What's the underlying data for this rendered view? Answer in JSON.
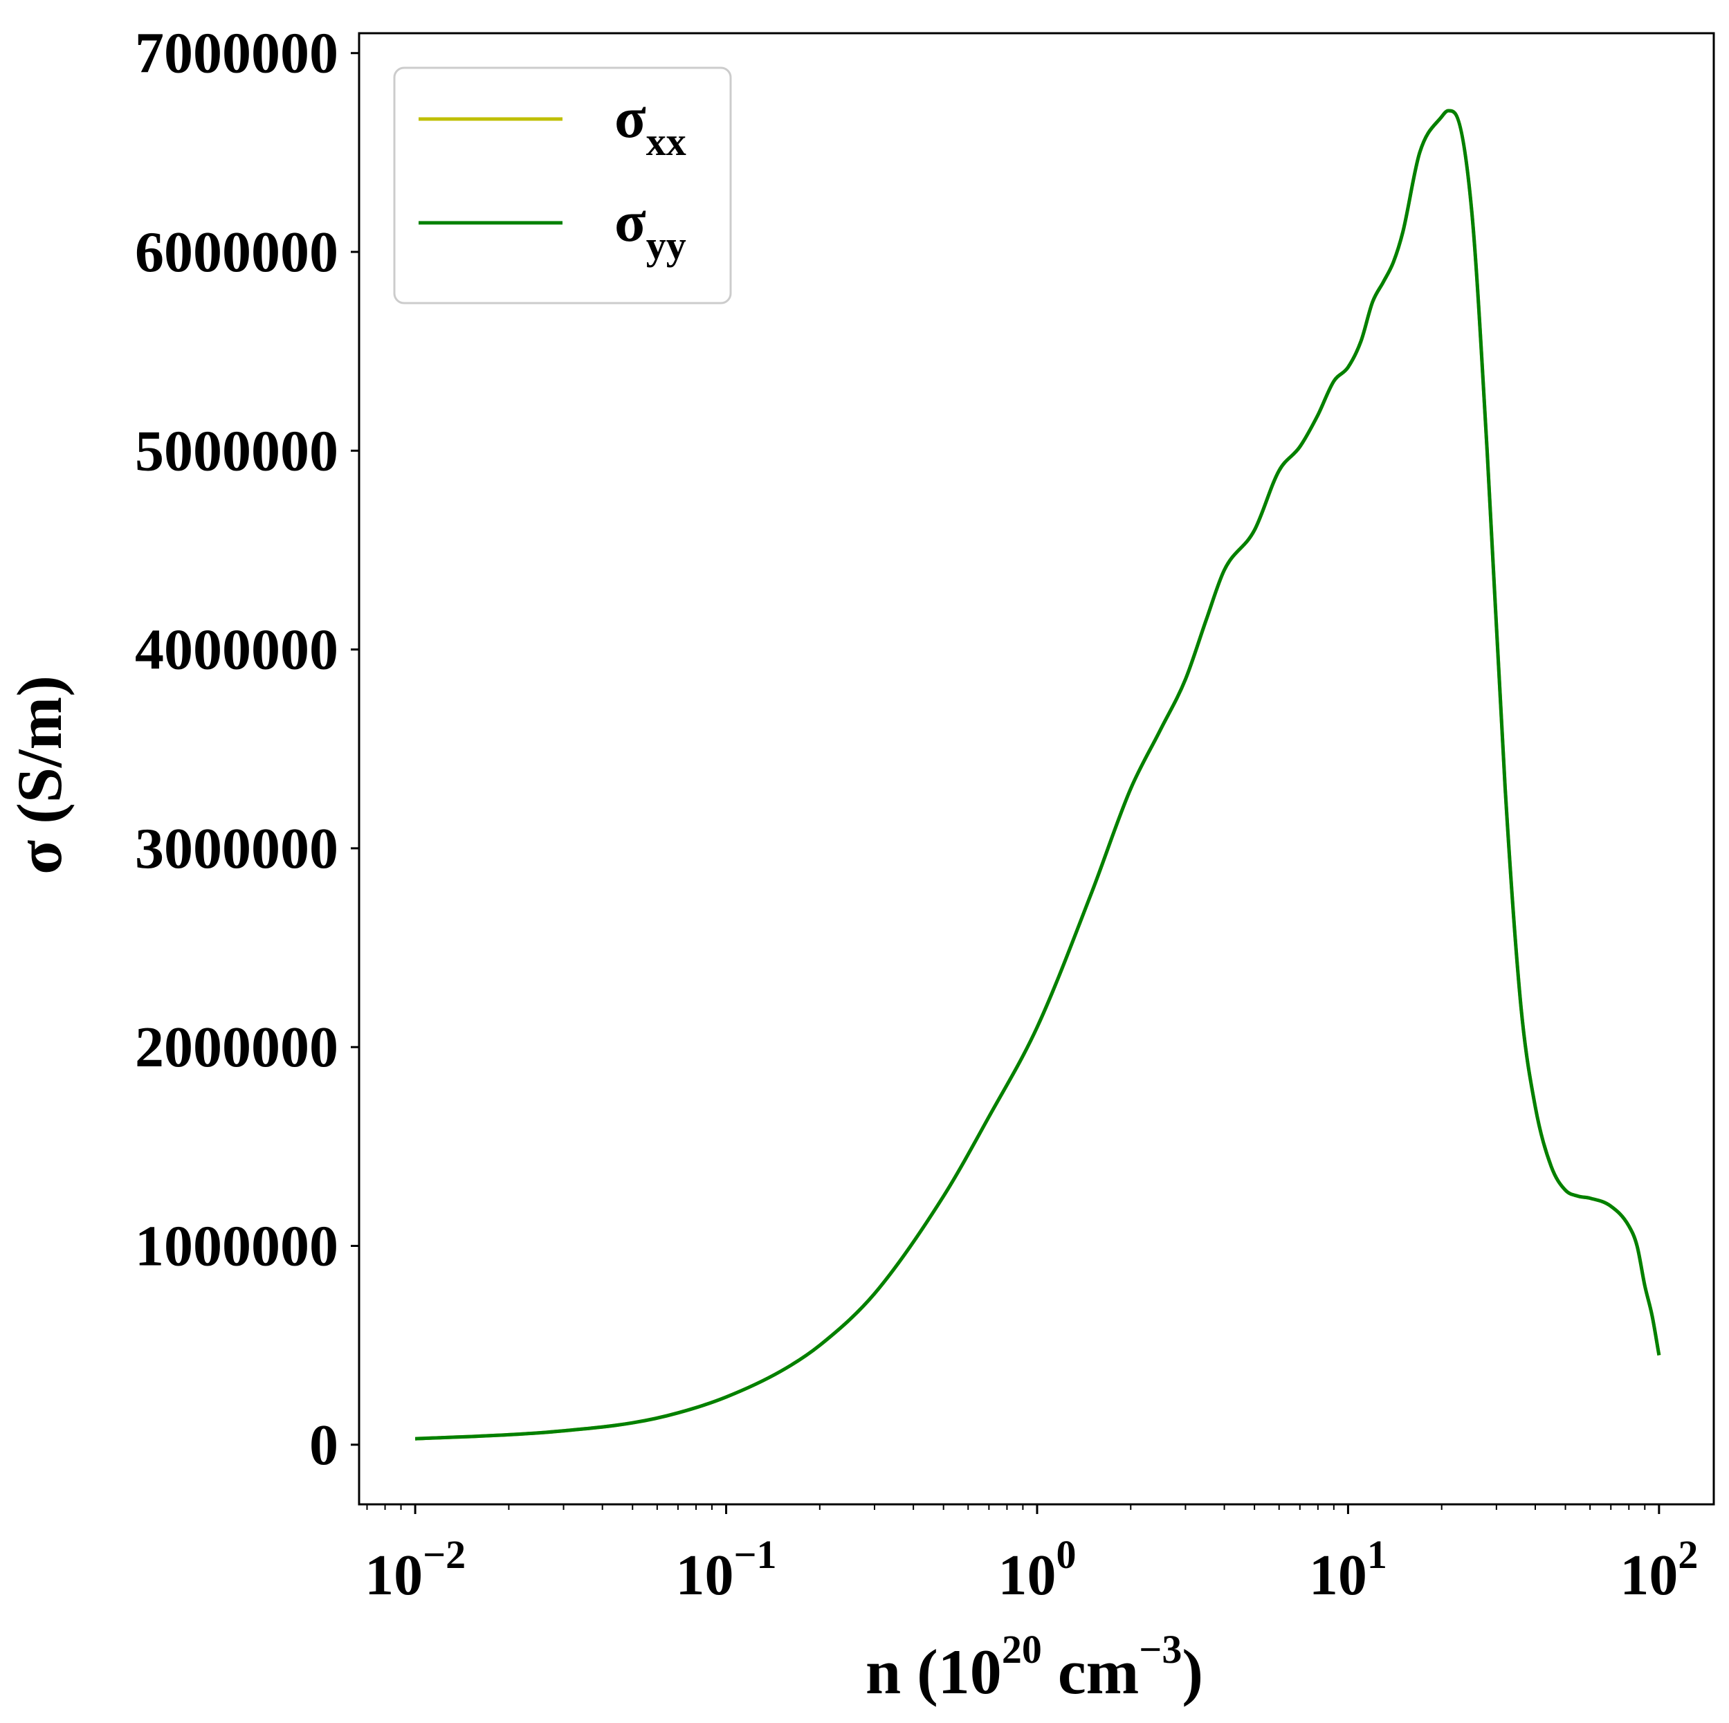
{
  "chart_data": {
    "type": "line",
    "xscale": "log",
    "xlim": [
      0.0066,
      150
    ],
    "ylim": [
      -300000,
      7100000
    ],
    "xlabel": {
      "base": "n (10",
      "exp1": "20",
      "mid": " cm",
      "exp2": "−3",
      "end": ")"
    },
    "ylabel": "σ (S/m)",
    "yticks": [
      {
        "value": 0,
        "label": "0"
      },
      {
        "value": 1000000,
        "label": "1000000"
      },
      {
        "value": 2000000,
        "label": "2000000"
      },
      {
        "value": 3000000,
        "label": "3000000"
      },
      {
        "value": 4000000,
        "label": "4000000"
      },
      {
        "value": 5000000,
        "label": "5000000"
      },
      {
        "value": 6000000,
        "label": "6000000"
      },
      {
        "value": 7000000,
        "label": "7000000"
      }
    ],
    "xticks": [
      {
        "value": 0.01,
        "base": "10",
        "exp": "−2"
      },
      {
        "value": 0.1,
        "base": "10",
        "exp": "−1"
      },
      {
        "value": 1,
        "base": "10",
        "exp": "0"
      },
      {
        "value": 10,
        "base": "10",
        "exp": "1"
      },
      {
        "value": 100,
        "base": "10",
        "exp": "2"
      }
    ],
    "legend": {
      "placement": "top-left"
    },
    "series": [
      {
        "name": "σ",
        "sub": "xx",
        "color": "#bfbf00",
        "x": [
          0.01,
          0.02,
          0.03,
          0.05,
          0.07,
          0.1,
          0.15,
          0.2,
          0.3,
          0.5,
          0.7,
          1,
          1.5,
          2,
          2.5,
          3,
          3.5,
          4,
          5,
          6,
          7,
          8,
          9,
          10,
          11,
          12,
          13,
          14,
          15,
          17,
          20,
          21,
          22,
          25,
          28,
          32,
          36,
          40,
          45,
          50,
          55,
          60,
          70,
          80,
          85,
          90,
          95,
          100
        ],
        "y": [
          30000,
          50000,
          70000,
          110000,
          160000,
          240000,
          370000,
          500000,
          760000,
          1250000,
          1650000,
          2100000,
          2780000,
          3300000,
          3600000,
          3850000,
          4150000,
          4400000,
          4600000,
          4900000,
          5020000,
          5180000,
          5350000,
          5420000,
          5550000,
          5750000,
          5850000,
          5950000,
          6100000,
          6500000,
          6680000,
          6710000,
          6700000,
          6200000,
          5000000,
          3300000,
          2200000,
          1700000,
          1400000,
          1280000,
          1250000,
          1240000,
          1200000,
          1100000,
          1000000,
          800000,
          650000,
          450000
        ]
      },
      {
        "name": "σ",
        "sub": "yy",
        "color": "#008000",
        "x": [
          0.01,
          0.02,
          0.03,
          0.05,
          0.07,
          0.1,
          0.15,
          0.2,
          0.3,
          0.5,
          0.7,
          1,
          1.5,
          2,
          2.5,
          3,
          3.5,
          4,
          5,
          6,
          7,
          8,
          9,
          10,
          11,
          12,
          13,
          14,
          15,
          17,
          20,
          21,
          22,
          25,
          28,
          32,
          36,
          40,
          45,
          50,
          55,
          60,
          70,
          80,
          85,
          90,
          95,
          100
        ],
        "y": [
          30000,
          50000,
          70000,
          110000,
          160000,
          240000,
          370000,
          500000,
          760000,
          1250000,
          1650000,
          2100000,
          2780000,
          3300000,
          3600000,
          3850000,
          4150000,
          4400000,
          4600000,
          4900000,
          5020000,
          5180000,
          5350000,
          5420000,
          5550000,
          5750000,
          5850000,
          5950000,
          6100000,
          6500000,
          6680000,
          6710000,
          6700000,
          6200000,
          5000000,
          3300000,
          2200000,
          1700000,
          1400000,
          1280000,
          1250000,
          1240000,
          1200000,
          1100000,
          1000000,
          800000,
          650000,
          450000
        ]
      }
    ]
  }
}
